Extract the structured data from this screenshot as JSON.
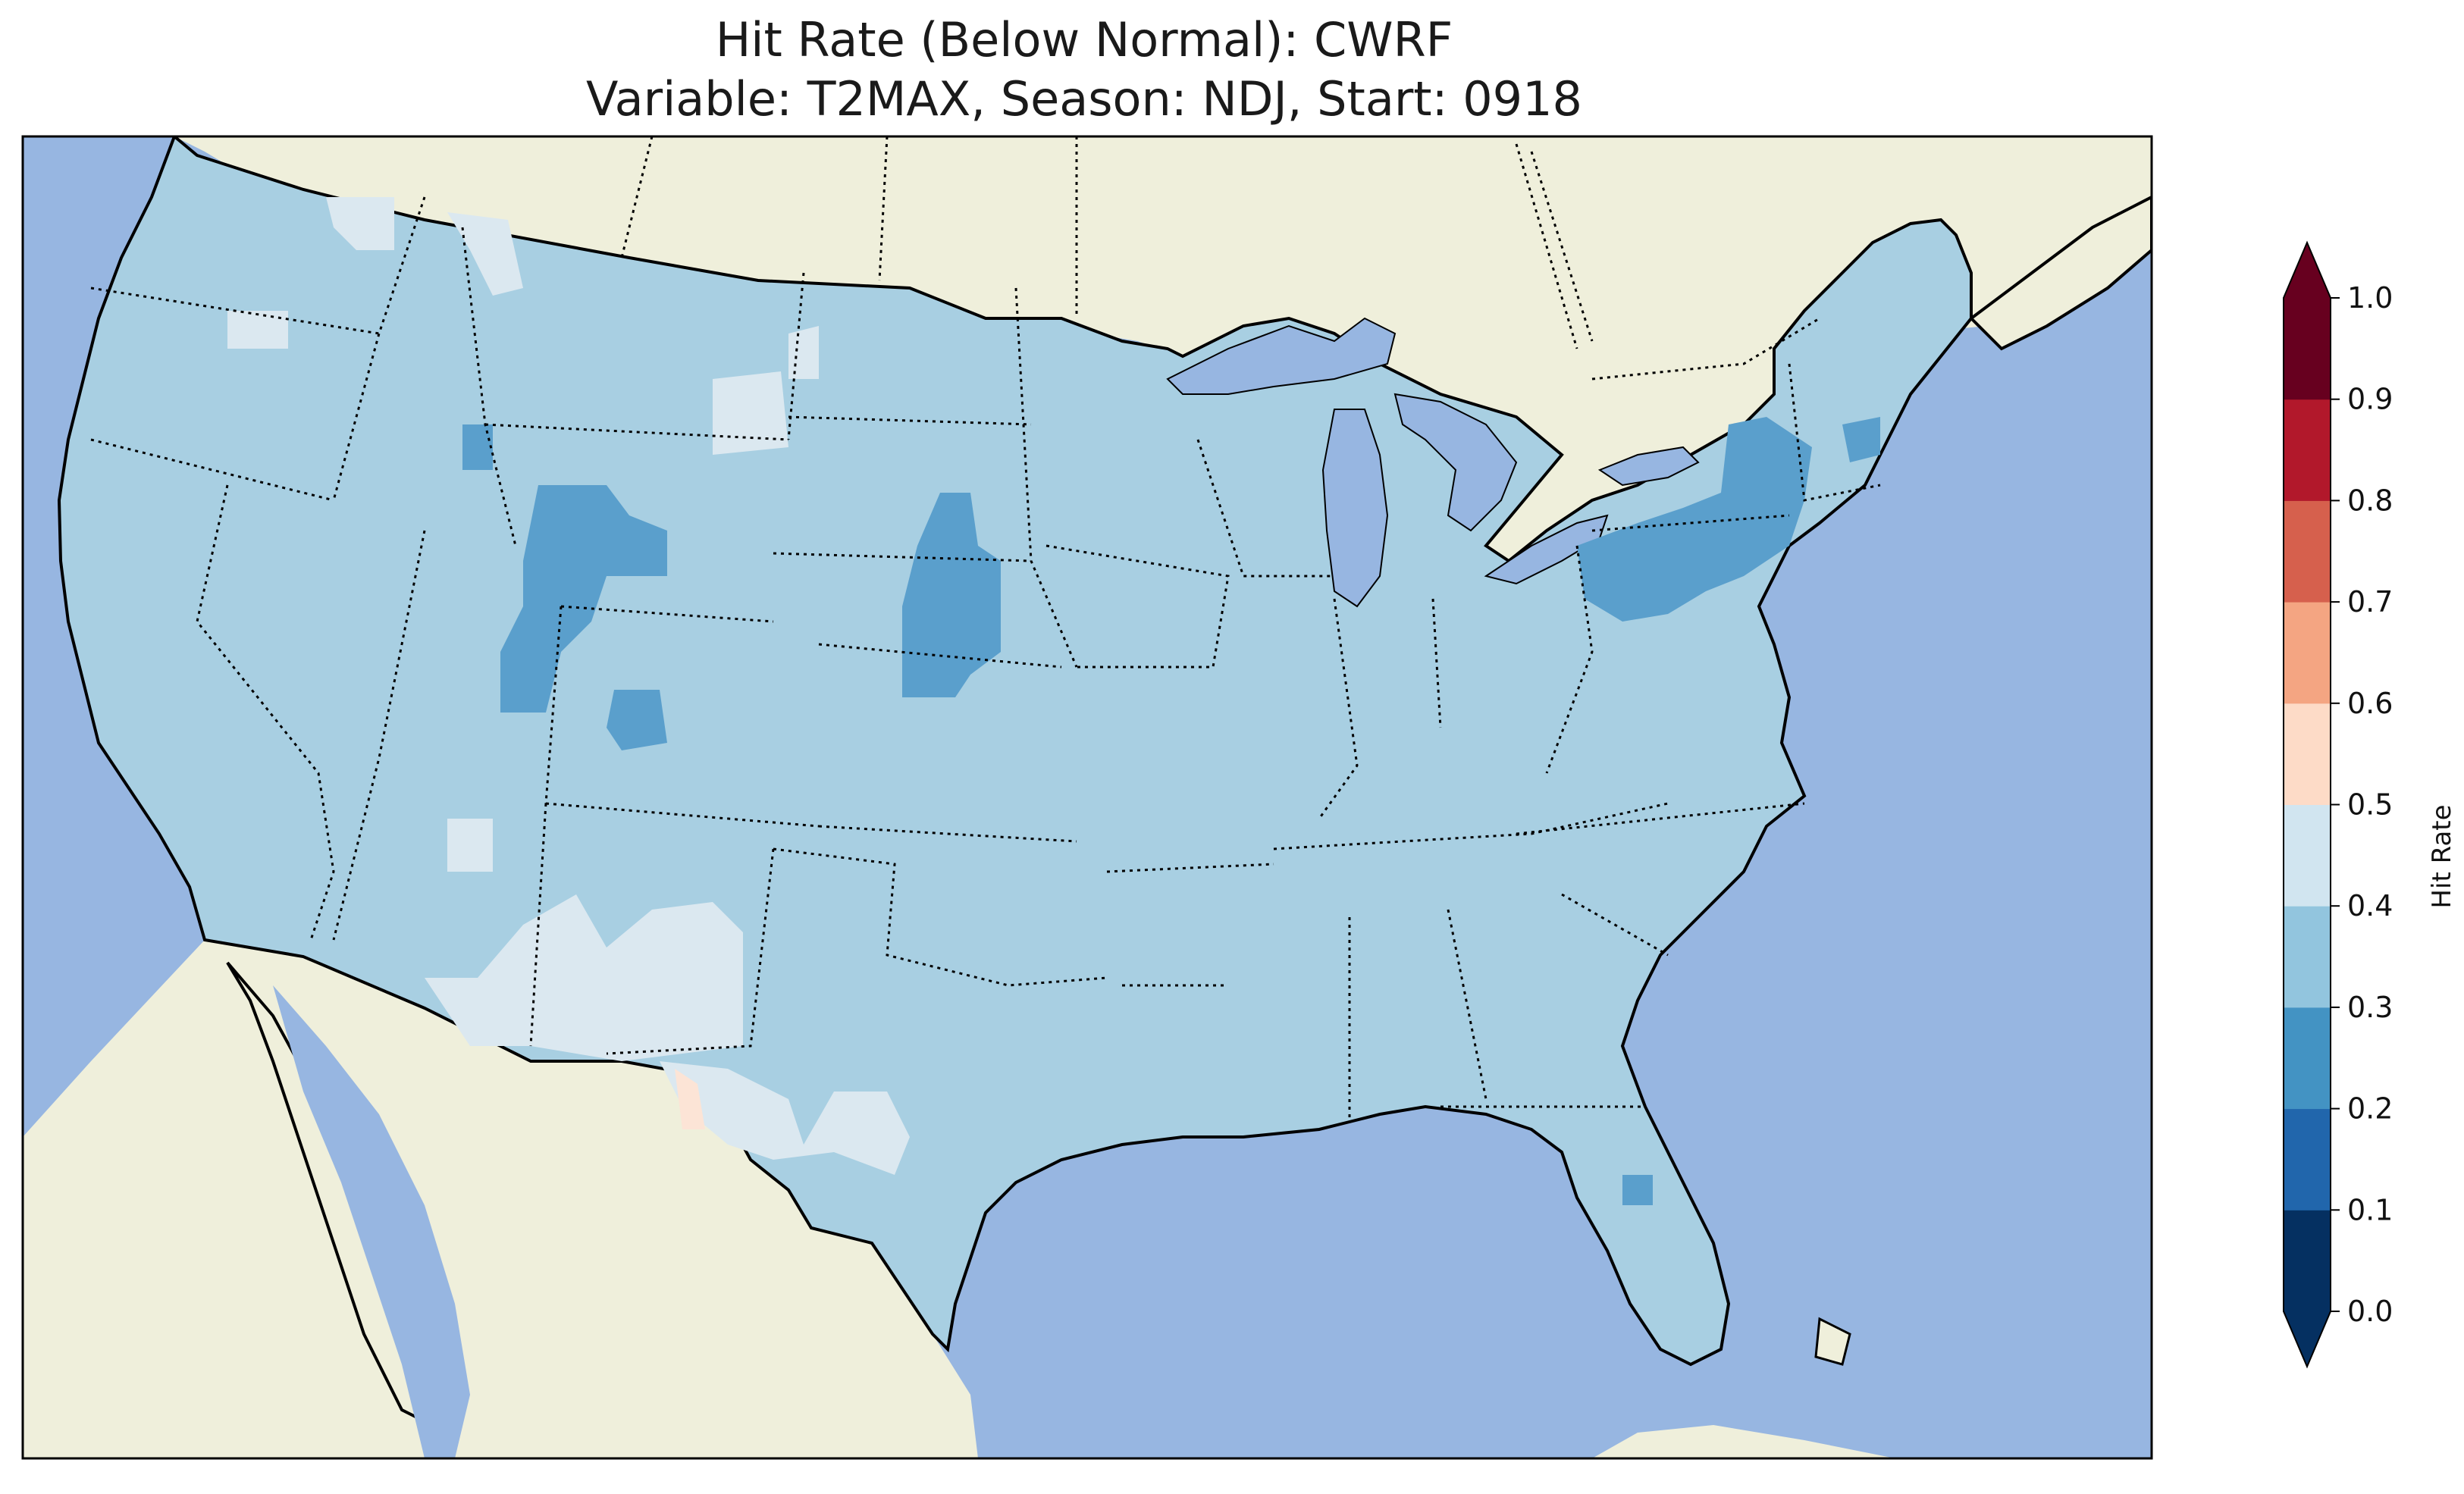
{
  "title": {
    "line1": "Hit Rate (Below Normal): CWRF",
    "line2": "Variable: T2MAX, Season: NDJ, Start: 0918"
  },
  "map": {
    "region": "Contiguous United States",
    "colors": {
      "ocean": "#97b6e1",
      "land": "#efefdb",
      "coastline": "#000000",
      "borders": "#000000"
    },
    "dominant_hit_rate_bin": "0.3-0.4"
  },
  "colorbar": {
    "label": "Hit Rate",
    "min": 0.0,
    "max": 1.0,
    "extend": "both",
    "ticks": [
      "0.0",
      "0.1",
      "0.2",
      "0.3",
      "0.4",
      "0.5",
      "0.6",
      "0.7",
      "0.8",
      "0.9",
      "1.0"
    ],
    "bins": [
      {
        "range": [
          0.0,
          0.1
        ],
        "color": "#053061"
      },
      {
        "range": [
          0.1,
          0.2
        ],
        "color": "#2166ac"
      },
      {
        "range": [
          0.2,
          0.3
        ],
        "color": "#4393c3"
      },
      {
        "range": [
          0.3,
          0.4
        ],
        "color": "#92c5de"
      },
      {
        "range": [
          0.4,
          0.5
        ],
        "color": "#d1e5f0"
      },
      {
        "range": [
          0.5,
          0.6
        ],
        "color": "#fddbc7"
      },
      {
        "range": [
          0.6,
          0.7
        ],
        "color": "#f4a582"
      },
      {
        "range": [
          0.7,
          0.8
        ],
        "color": "#d6604d"
      },
      {
        "range": [
          0.8,
          0.9
        ],
        "color": "#b2182b"
      },
      {
        "range": [
          0.9,
          1.0
        ],
        "color": "#67001f"
      }
    ],
    "under_color": "#053061",
    "over_color": "#67001f"
  },
  "field_patches": [
    {
      "area": "Wyoming",
      "bin": "0.2-0.3"
    },
    {
      "area": "Southwest Idaho",
      "bin": "0.2-0.3"
    },
    {
      "area": "Nebraska panhandle",
      "bin": "0.2-0.3"
    },
    {
      "area": "Northwest Colorado",
      "bin": "0.2-0.3"
    },
    {
      "area": "Pennsylvania / New York",
      "bin": "0.2-0.3"
    },
    {
      "area": "Central Florida",
      "bin": "0.2-0.3"
    },
    {
      "area": "North Idaho / Montana",
      "bin": "0.4-0.5"
    },
    {
      "area": "Oregon",
      "bin": "0.4-0.5"
    },
    {
      "area": "Southeast Montana",
      "bin": "0.4-0.5"
    },
    {
      "area": "Arizona",
      "bin": "0.4-0.5"
    },
    {
      "area": "New Mexico",
      "bin": "0.4-0.5"
    },
    {
      "area": "West Texas",
      "bin": "0.4-0.5"
    },
    {
      "area": "Big Bend Texas",
      "bin": "0.5-0.6"
    }
  ]
}
